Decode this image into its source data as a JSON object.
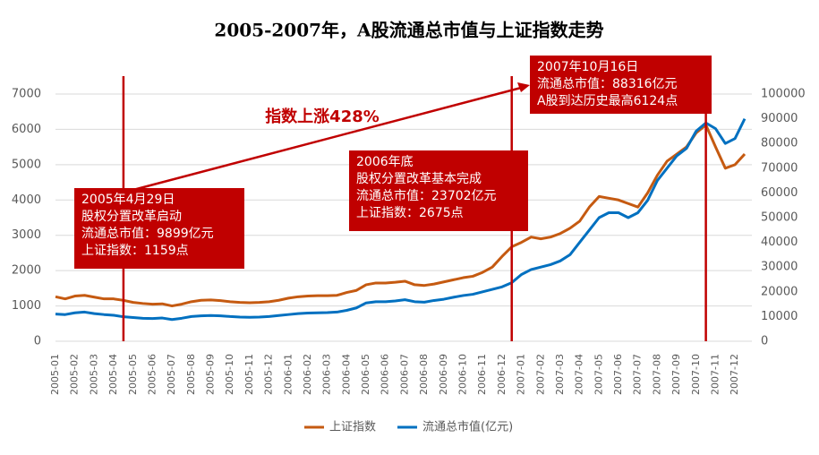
{
  "chart_data": {
    "type": "line",
    "title": "2005-2007年，A股流通总市值与上证指数走势",
    "categories": [
      "2005-01",
      null,
      "2005-02",
      null,
      "2005-03",
      null,
      "2005-04",
      null,
      "2005-05",
      null,
      "2005-06",
      null,
      "2005-07",
      null,
      "2005-08",
      null,
      "2005-09",
      null,
      "2005-10",
      null,
      "2005-11",
      null,
      "2005-12",
      null,
      "2006-01",
      null,
      "2006-02",
      null,
      "2006-03",
      null,
      "2006-04",
      null,
      "2006-05",
      null,
      "2006-06",
      null,
      "2006-07",
      null,
      "2006-08",
      null,
      "2006-09",
      null,
      "2006-10",
      null,
      "2006-11",
      null,
      "2006-12",
      null,
      "2007-01",
      null,
      "2007-02",
      null,
      "2007-03",
      null,
      "2007-04",
      null,
      "2007-05",
      null,
      "2007-06",
      null,
      "2007-07",
      null,
      "2007-08",
      null,
      "2007-09",
      null,
      "2007-10",
      null,
      "2007-11",
      null,
      "2007-12",
      null
    ],
    "series": [
      {
        "name": "上证指数",
        "color": "#C55A11",
        "values": [
          1260,
          1200,
          1280,
          1300,
          1250,
          1200,
          1200,
          1159,
          1100,
          1070,
          1050,
          1060,
          1000,
          1050,
          1120,
          1160,
          1170,
          1150,
          1120,
          1100,
          1090,
          1100,
          1120,
          1160,
          1220,
          1260,
          1280,
          1290,
          1290,
          1300,
          1380,
          1440,
          1600,
          1650,
          1650,
          1670,
          1700,
          1600,
          1580,
          1620,
          1680,
          1740,
          1800,
          1840,
          1950,
          2100,
          2400,
          2675,
          2800,
          2950,
          2900,
          2950,
          3050,
          3200,
          3400,
          3800,
          4100,
          4050,
          4000,
          3900,
          3800,
          4200,
          4700,
          5100,
          5300,
          5500,
          5900,
          6124,
          5500,
          4900,
          5000,
          5300
        ]
      },
      {
        "name": "流通总市值(亿元)",
        "color": "#0070C0",
        "axis": "y2",
        "values": [
          11000,
          10800,
          11500,
          11800,
          11200,
          10800,
          10500,
          9899,
          9600,
          9300,
          9200,
          9400,
          8800,
          9300,
          10000,
          10300,
          10400,
          10300,
          10000,
          9800,
          9700,
          9800,
          10000,
          10400,
          10800,
          11200,
          11400,
          11500,
          11600,
          11800,
          12500,
          13500,
          15500,
          16000,
          16000,
          16300,
          16800,
          16000,
          15800,
          16500,
          17000,
          17800,
          18500,
          19000,
          20000,
          21000,
          22000,
          23702,
          27000,
          29000,
          30000,
          31000,
          32500,
          35000,
          40000,
          45000,
          50000,
          52000,
          52000,
          50000,
          52000,
          57000,
          65000,
          70000,
          75000,
          78000,
          85000,
          88316,
          86000,
          80000,
          82000,
          90000
        ]
      }
    ],
    "ylim": [
      0,
      7000
    ],
    "yticks": [
      0,
      1000,
      2000,
      3000,
      4000,
      5000,
      6000,
      7000
    ],
    "y2lim": [
      0,
      100000
    ],
    "y2ticks": [
      0,
      10000,
      20000,
      30000,
      40000,
      50000,
      60000,
      70000,
      80000,
      90000,
      100000
    ],
    "grid": true,
    "legend": "bottom",
    "arrow_text": "指数上涨428%",
    "annotations": [
      {
        "lines": [
          "2005年4月29日",
          "股权分置改革启动",
          "流通总市值：9899亿元",
          "上证指数：1159点"
        ]
      },
      {
        "lines": [
          "2006年底",
          "股权分置改革基本完成",
          "流通总市值：23702亿元",
          "上证指数：2675点"
        ]
      },
      {
        "lines": [
          "2007年10月16日",
          "流通总市值：88316亿元",
          "A股到达历史最高6124点"
        ]
      }
    ]
  }
}
